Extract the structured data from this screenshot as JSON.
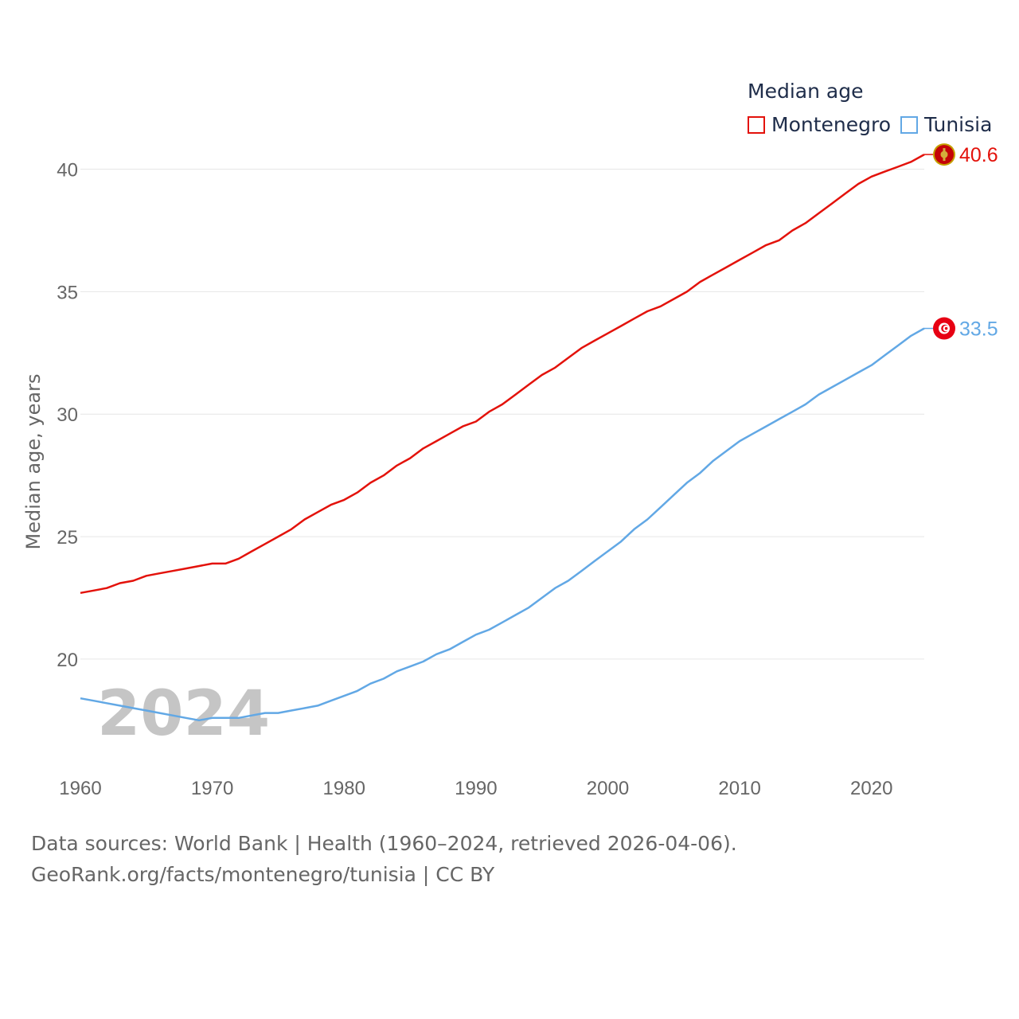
{
  "legend": {
    "title": "Median age",
    "items": [
      {
        "name": "Montenegro",
        "color": "#e3120b"
      },
      {
        "name": "Tunisia",
        "color": "#62a8e5"
      }
    ]
  },
  "year_watermark": "2024",
  "footer": {
    "line1": "Data sources: World Bank | Health (1960–2024, retrieved 2026-04-06).",
    "line2": "GeoRank.org/facts/montenegro/tunisia | CC BY"
  },
  "chart_data": {
    "type": "line",
    "title": "Median age",
    "xlabel": "",
    "ylabel": "Median age, years",
    "xlim": [
      1960,
      2024
    ],
    "ylim": [
      16,
      42
    ],
    "xticks": [
      1960,
      1970,
      1980,
      1990,
      2000,
      2010,
      2020
    ],
    "yticks": [
      20,
      25,
      30,
      35,
      40
    ],
    "grid": true,
    "x": [
      1960,
      1961,
      1962,
      1963,
      1964,
      1965,
      1966,
      1967,
      1968,
      1969,
      1970,
      1971,
      1972,
      1973,
      1974,
      1975,
      1976,
      1977,
      1978,
      1979,
      1980,
      1981,
      1982,
      1983,
      1984,
      1985,
      1986,
      1987,
      1988,
      1989,
      1990,
      1991,
      1992,
      1993,
      1994,
      1995,
      1996,
      1997,
      1998,
      1999,
      2000,
      2001,
      2002,
      2003,
      2004,
      2005,
      2006,
      2007,
      2008,
      2009,
      2010,
      2011,
      2012,
      2013,
      2014,
      2015,
      2016,
      2017,
      2018,
      2019,
      2020,
      2021,
      2022,
      2023,
      2024
    ],
    "series": [
      {
        "name": "Montenegro",
        "color": "#e3120b",
        "end_label": "40.6",
        "flag": "montenegro-flag",
        "values": [
          22.7,
          22.8,
          22.9,
          23.1,
          23.2,
          23.4,
          23.5,
          23.6,
          23.7,
          23.8,
          23.9,
          23.9,
          24.1,
          24.4,
          24.7,
          25.0,
          25.3,
          25.7,
          26.0,
          26.3,
          26.5,
          26.8,
          27.2,
          27.5,
          27.9,
          28.2,
          28.6,
          28.9,
          29.2,
          29.5,
          29.7,
          30.1,
          30.4,
          30.8,
          31.2,
          31.6,
          31.9,
          32.3,
          32.7,
          33.0,
          33.3,
          33.6,
          33.9,
          34.2,
          34.4,
          34.7,
          35.0,
          35.4,
          35.7,
          36.0,
          36.3,
          36.6,
          36.9,
          37.1,
          37.5,
          37.8,
          38.2,
          38.6,
          39.0,
          39.4,
          39.7,
          39.9,
          40.1,
          40.3,
          40.6
        ]
      },
      {
        "name": "Tunisia",
        "color": "#62a8e5",
        "end_label": "33.5",
        "flag": "tunisia-flag",
        "values": [
          18.4,
          18.3,
          18.2,
          18.1,
          18.0,
          17.9,
          17.8,
          17.7,
          17.6,
          17.5,
          17.6,
          17.6,
          17.6,
          17.7,
          17.8,
          17.8,
          17.9,
          18.0,
          18.1,
          18.3,
          18.5,
          18.7,
          19.0,
          19.2,
          19.5,
          19.7,
          19.9,
          20.2,
          20.4,
          20.7,
          21.0,
          21.2,
          21.5,
          21.8,
          22.1,
          22.5,
          22.9,
          23.2,
          23.6,
          24.0,
          24.4,
          24.8,
          25.3,
          25.7,
          26.2,
          26.7,
          27.2,
          27.6,
          28.1,
          28.5,
          28.9,
          29.2,
          29.5,
          29.8,
          30.1,
          30.4,
          30.8,
          31.1,
          31.4,
          31.7,
          32.0,
          32.4,
          32.8,
          33.2,
          33.5
        ]
      }
    ]
  }
}
